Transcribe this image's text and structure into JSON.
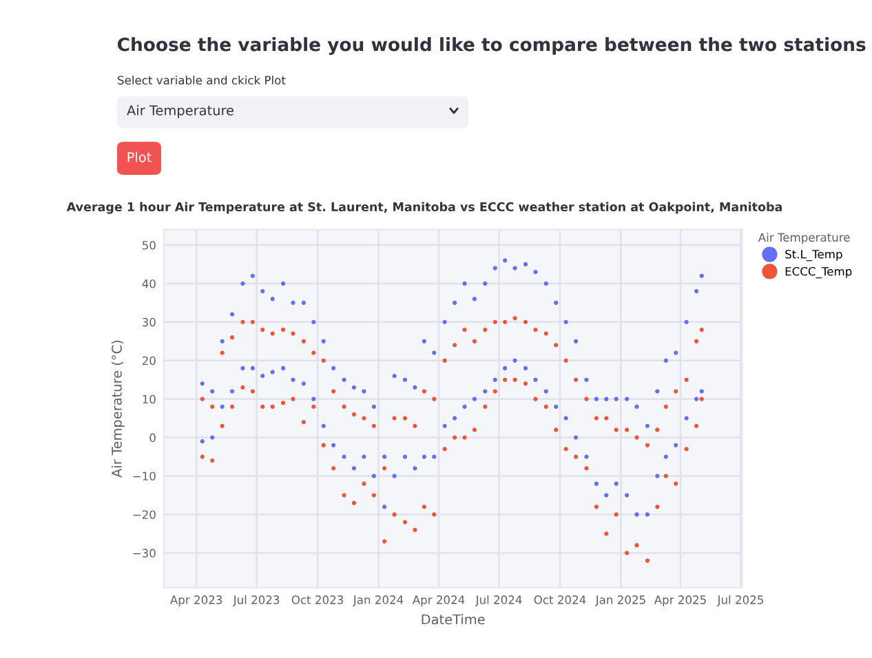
{
  "chart_data": {
    "type": "scatter",
    "title": "Choose the variable you would like to compare between the two stations",
    "subtitle": "Average 1 hour Air Temperature at St. Laurent, Manitoba vs ECCC weather station at Oakpoint, Manitoba",
    "annotations": [
      "Select variable and ckick Plot",
      "Air Temperature",
      "Plot"
    ],
    "xlabel": "DateTime",
    "ylabel": "Air Temperature (°C)",
    "legend_title": "Air Temperature",
    "x": [
      "2023-04-10",
      "2023-04-10",
      "2023-04-25",
      "2023-04-25",
      "2023-05-10",
      "2023-05-10",
      "2023-05-25",
      "2023-05-25",
      "2023-06-10",
      "2023-06-10",
      "2023-06-25",
      "2023-06-25",
      "2023-07-10",
      "2023-07-10",
      "2023-07-25",
      "2023-07-25",
      "2023-08-10",
      "2023-08-10",
      "2023-08-25",
      "2023-08-25",
      "2023-09-10",
      "2023-09-10",
      "2023-09-25",
      "2023-09-25",
      "2023-10-10",
      "2023-10-10",
      "2023-10-25",
      "2023-10-25",
      "2023-11-10",
      "2023-11-10",
      "2023-11-25",
      "2023-11-25",
      "2023-12-10",
      "2023-12-10",
      "2023-12-25",
      "2023-12-25",
      "2024-01-10",
      "2024-01-10",
      "2024-01-25",
      "2024-01-25",
      "2024-02-10",
      "2024-02-10",
      "2024-02-25",
      "2024-02-25",
      "2024-03-10",
      "2024-03-10",
      "2024-03-25",
      "2024-03-25",
      "2024-04-10",
      "2024-04-10",
      "2024-04-25",
      "2024-04-25",
      "2024-05-10",
      "2024-05-10",
      "2024-05-25",
      "2024-05-25",
      "2024-06-10",
      "2024-06-10",
      "2024-06-25",
      "2024-06-25",
      "2024-07-10",
      "2024-07-10",
      "2024-07-25",
      "2024-07-25",
      "2024-08-10",
      "2024-08-10",
      "2024-08-25",
      "2024-08-25",
      "2024-09-10",
      "2024-09-10",
      "2024-09-25",
      "2024-09-25",
      "2024-10-10",
      "2024-10-10",
      "2024-10-25",
      "2024-10-25",
      "2024-11-10",
      "2024-11-10",
      "2024-11-25",
      "2024-11-25",
      "2024-12-10",
      "2024-12-10",
      "2024-12-25",
      "2024-12-25",
      "2025-01-10",
      "2025-01-10",
      "2025-01-25",
      "2025-01-25",
      "2025-02-10",
      "2025-02-10",
      "2025-02-25",
      "2025-02-25",
      "2025-03-10",
      "2025-03-10",
      "2025-03-25",
      "2025-03-25",
      "2025-04-10",
      "2025-04-10",
      "2025-04-25",
      "2025-04-25",
      "2025-05-03",
      "2025-05-03"
    ],
    "series": [
      {
        "name": "St.L_Temp",
        "color": "#636efa",
        "values": [
          14,
          -1,
          12,
          0,
          25,
          8,
          32,
          12,
          40,
          18,
          42,
          18,
          38,
          16,
          36,
          17,
          40,
          18,
          35,
          15,
          35,
          14,
          30,
          10,
          25,
          3,
          18,
          -2,
          15,
          -5,
          13,
          -8,
          12,
          -5,
          8,
          -10,
          -5,
          -18,
          16,
          -10,
          15,
          -5,
          13,
          -8,
          25,
          -5,
          22,
          -5,
          30,
          3,
          35,
          5,
          40,
          8,
          36,
          10,
          40,
          12,
          44,
          15,
          46,
          18,
          44,
          20,
          45,
          18,
          43,
          15,
          40,
          12,
          35,
          8,
          30,
          5,
          25,
          0,
          15,
          -5,
          10,
          -12,
          10,
          -15,
          10,
          -12,
          10,
          -15,
          8,
          -20,
          3,
          -20,
          12,
          -10,
          20,
          -5,
          22,
          -2,
          30,
          5,
          38,
          10,
          42,
          12
        ]
      },
      {
        "name": "ECCC_Temp",
        "color": "#ef553b",
        "values": [
          10,
          -5,
          8,
          -6,
          22,
          3,
          26,
          8,
          30,
          13,
          30,
          12,
          28,
          8,
          27,
          8,
          28,
          9,
          27,
          10,
          25,
          4,
          22,
          8,
          20,
          -2,
          12,
          -8,
          8,
          -15,
          6,
          -17,
          5,
          -12,
          3,
          -15,
          -8,
          -27,
          5,
          -20,
          5,
          -22,
          3,
          -24,
          12,
          -18,
          10,
          -20,
          20,
          -3,
          24,
          0,
          28,
          0,
          25,
          2,
          28,
          8,
          30,
          12,
          30,
          15,
          31,
          15,
          30,
          14,
          28,
          10,
          27,
          8,
          24,
          2,
          20,
          -3,
          15,
          -5,
          10,
          -8,
          5,
          -18,
          5,
          -25,
          2,
          -20,
          2,
          -30,
          0,
          -28,
          -2,
          -32,
          2,
          -18,
          8,
          -10,
          12,
          -12,
          15,
          -3,
          25,
          3,
          28,
          10
        ]
      }
    ],
    "xlim": [
      "2023-02-11",
      "2025-07-03"
    ],
    "ylim": [
      -39,
      54
    ],
    "xticks": [
      {
        "value": "2023-04-01",
        "label": "Apr 2023"
      },
      {
        "value": "2023-07-01",
        "label": "Jul 2023"
      },
      {
        "value": "2023-10-01",
        "label": "Oct 2023"
      },
      {
        "value": "2024-01-01",
        "label": "Jan 2024"
      },
      {
        "value": "2024-04-01",
        "label": "Apr 2024"
      },
      {
        "value": "2024-07-01",
        "label": "Jul 2024"
      },
      {
        "value": "2024-10-01",
        "label": "Oct 2024"
      },
      {
        "value": "2025-01-01",
        "label": "Jan 2025"
      },
      {
        "value": "2025-04-01",
        "label": "Apr 2025"
      },
      {
        "value": "2025-07-01",
        "label": "Jul 2025"
      }
    ],
    "yticks": [
      -30,
      -20,
      -10,
      0,
      10,
      20,
      30,
      40,
      50
    ],
    "grid": true,
    "legend": "top right",
    "marker": "circle"
  }
}
